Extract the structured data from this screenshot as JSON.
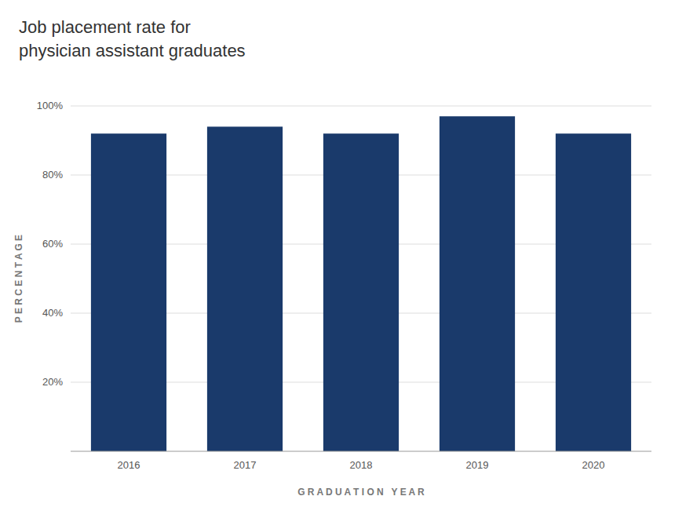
{
  "chart_data": {
    "type": "bar",
    "title": [
      "Job placement rate for",
      "physician assistant graduates"
    ],
    "categories": [
      "2016",
      "2017",
      "2018",
      "2019",
      "2020"
    ],
    "values": [
      92,
      94,
      92,
      97,
      92
    ],
    "color": "#1a3a6b",
    "xlabel": "G R A D U A T I O N   Y E A R",
    "ylabel": "P E R C E N T A G E",
    "ylim": [
      0,
      100
    ],
    "yticks": [
      {
        "value": 20,
        "label": "20%"
      },
      {
        "value": 40,
        "label": "40%"
      },
      {
        "value": 60,
        "label": "60%"
      },
      {
        "value": 80,
        "label": "80%"
      },
      {
        "value": 100,
        "label": "100%"
      }
    ],
    "grid": true
  }
}
